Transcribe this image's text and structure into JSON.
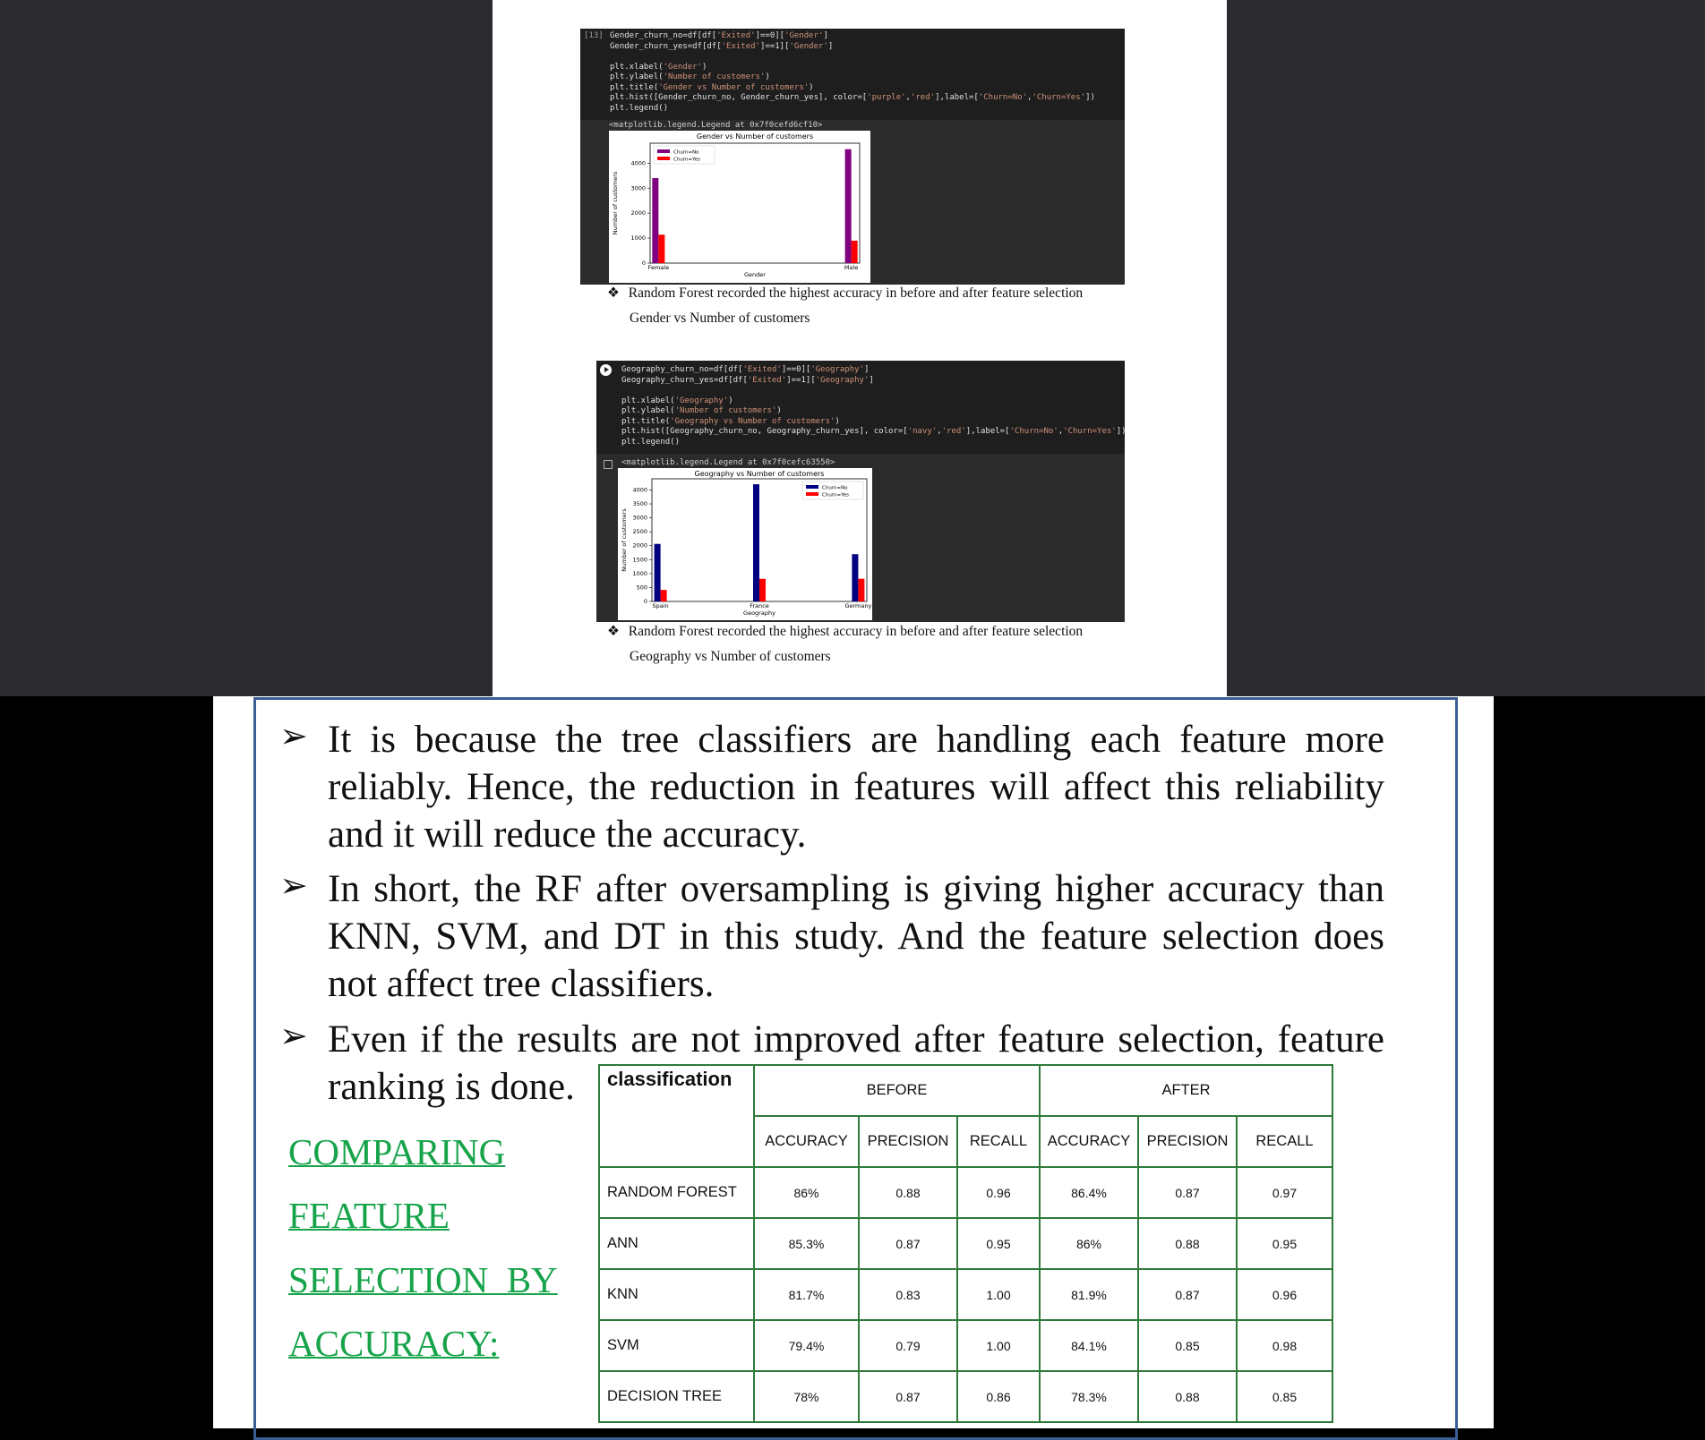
{
  "cell1": {
    "code": [
      {
        "segments": [
          {
            "t": "Gender_churn_no=df[df[",
            "c": "p"
          },
          {
            "t": "'Exited'",
            "c": "s"
          },
          {
            "t": "]==0][",
            "c": "p"
          },
          {
            "t": "'Gender'",
            "c": "s"
          },
          {
            "t": "]",
            "c": "p"
          }
        ]
      },
      {
        "segments": [
          {
            "t": "Gender_churn_yes=df[df[",
            "c": "p"
          },
          {
            "t": "'Exited'",
            "c": "s"
          },
          {
            "t": "]==1][",
            "c": "p"
          },
          {
            "t": "'Gender'",
            "c": "s"
          },
          {
            "t": "]",
            "c": "p"
          }
        ]
      },
      {
        "segments": [
          {
            "t": "",
            "c": "p"
          }
        ]
      },
      {
        "segments": [
          {
            "t": "plt.xlabel(",
            "c": "p"
          },
          {
            "t": "'Gender'",
            "c": "s"
          },
          {
            "t": ")",
            "c": "p"
          }
        ]
      },
      {
        "segments": [
          {
            "t": "plt.ylabel(",
            "c": "p"
          },
          {
            "t": "'Number of customers'",
            "c": "s"
          },
          {
            "t": ")",
            "c": "p"
          }
        ]
      },
      {
        "segments": [
          {
            "t": "plt.title(",
            "c": "p"
          },
          {
            "t": "'Gender vs Number of customers'",
            "c": "s"
          },
          {
            "t": ")",
            "c": "p"
          }
        ]
      },
      {
        "segments": [
          {
            "t": "plt.hist([Gender_churn_no, Gender_churn_yes], color=[",
            "c": "p"
          },
          {
            "t": "'purple'",
            "c": "s"
          },
          {
            "t": ",",
            "c": "p"
          },
          {
            "t": "'red'",
            "c": "s"
          },
          {
            "t": "],label=[",
            "c": "p"
          },
          {
            "t": "'Churn=No'",
            "c": "s"
          },
          {
            "t": ",",
            "c": "p"
          },
          {
            "t": "'Churn=Yes'",
            "c": "s"
          },
          {
            "t": "])",
            "c": "p"
          }
        ]
      },
      {
        "segments": [
          {
            "t": "plt.legend()",
            "c": "p"
          }
        ]
      }
    ],
    "cell_number": "[13]",
    "output_text": "<matplotlib.legend.Legend at 0x7f0cefd6cf10>"
  },
  "cell2": {
    "code": [
      {
        "segments": [
          {
            "t": "Geography_churn_no=df[df[",
            "c": "p"
          },
          {
            "t": "'Exited'",
            "c": "s"
          },
          {
            "t": "]==0][",
            "c": "p"
          },
          {
            "t": "'Geography'",
            "c": "s"
          },
          {
            "t": "]",
            "c": "p"
          }
        ]
      },
      {
        "segments": [
          {
            "t": "Geography_churn_yes=df[df[",
            "c": "p"
          },
          {
            "t": "'Exited'",
            "c": "s"
          },
          {
            "t": "]==1][",
            "c": "p"
          },
          {
            "t": "'Geography'",
            "c": "s"
          },
          {
            "t": "]",
            "c": "p"
          }
        ]
      },
      {
        "segments": [
          {
            "t": "",
            "c": "p"
          }
        ]
      },
      {
        "segments": [
          {
            "t": "plt.xlabel(",
            "c": "p"
          },
          {
            "t": "'Geography'",
            "c": "s"
          },
          {
            "t": ")",
            "c": "p"
          }
        ]
      },
      {
        "segments": [
          {
            "t": "plt.ylabel(",
            "c": "p"
          },
          {
            "t": "'Number of customers'",
            "c": "s"
          },
          {
            "t": ")",
            "c": "p"
          }
        ]
      },
      {
        "segments": [
          {
            "t": "plt.title(",
            "c": "p"
          },
          {
            "t": "'Geography vs Number of customers'",
            "c": "s"
          },
          {
            "t": ")",
            "c": "p"
          }
        ]
      },
      {
        "segments": [
          {
            "t": "plt.hist([Geography_churn_no, Geography_churn_yes], color=[",
            "c": "p"
          },
          {
            "t": "'navy'",
            "c": "s"
          },
          {
            "t": ",",
            "c": "p"
          },
          {
            "t": "'red'",
            "c": "s"
          },
          {
            "t": "],label=[",
            "c": "p"
          },
          {
            "t": "'Churn=No'",
            "c": "s"
          },
          {
            "t": ",",
            "c": "p"
          },
          {
            "t": "'Churn=Yes'",
            "c": "s"
          },
          {
            "t": "])",
            "c": "p"
          }
        ]
      },
      {
        "segments": [
          {
            "t": "plt.legend()",
            "c": "p"
          }
        ]
      }
    ],
    "output_text": "<matplotlib.legend.Legend at 0x7f0cefc63550>"
  },
  "chart_data": [
    {
      "type": "bar",
      "title": "Gender vs Number of customers",
      "xlabel": "Gender",
      "ylabel": "Number of customers",
      "categories": [
        "Female",
        "Male"
      ],
      "series": [
        {
          "name": "Churn=No",
          "color": "#800080",
          "values": [
            3404,
            4559
          ]
        },
        {
          "name": "Churn=Yes",
          "color": "#ff0000",
          "values": [
            1139,
            898
          ]
        }
      ],
      "yticks": [
        0,
        1000,
        2000,
        3000,
        4000
      ],
      "ylim": [
        0,
        4800
      ],
      "legend": "top-left"
    },
    {
      "type": "bar",
      "title": "Geography vs Number of customers",
      "xlabel": "Geography",
      "ylabel": "Number of customers",
      "categories": [
        "Spain",
        "France",
        "Germany"
      ],
      "series": [
        {
          "name": "Churn=No",
          "color": "#000080",
          "values": [
            2064,
            4204,
            1695
          ]
        },
        {
          "name": "Churn=Yes",
          "color": "#ff0000",
          "values": [
            413,
            810,
            814
          ]
        }
      ],
      "yticks": [
        0,
        500,
        1000,
        1500,
        2000,
        2500,
        3000,
        3500,
        4000
      ],
      "ylim": [
        0,
        4400
      ],
      "legend": "top-right"
    }
  ],
  "notes": {
    "bullet": "❖",
    "note1": "Random Forest recorded the highest accuracy in before and after feature selection",
    "caption1": "Gender vs Number of customers",
    "note2": "Random Forest recorded the highest accuracy in before and after feature selection",
    "caption2": "Geography vs Number of customers"
  },
  "points": {
    "arrow": "➢",
    "p1": "It is because the tree classifiers are handling each feature more reliably. Hence, the reduction in features will affect this reliability and it will reduce the accuracy.",
    "p2": "In short, the RF after oversampling is giving higher accuracy than KNN, SVM, and DT in this study. And the feature selection does not affect tree classifiers.",
    "p3": "Even if the results are not improved after feature selection, feature ranking is done."
  },
  "heading": {
    "l1": "COMPARING",
    "l2": "FEATURE",
    "l3": "SELECTION  BY",
    "l4": "ACCURACY:"
  },
  "table": {
    "corner": "classification",
    "before": "BEFORE",
    "after": "AFTER",
    "cols": [
      "ACCURACY",
      "PRECISION",
      "RECALL",
      "ACCURACY",
      "PRECISION",
      "RECALL"
    ],
    "rows": [
      {
        "name": "RANDOM FOREST",
        "vals": [
          "86%",
          "0.88",
          "0.96",
          "86.4%",
          "0.87",
          "0.97"
        ]
      },
      {
        "name": "ANN",
        "vals": [
          "85.3%",
          "0.87",
          "0.95",
          "86%",
          "0.88",
          "0.95"
        ]
      },
      {
        "name": "KNN",
        "vals": [
          "81.7%",
          "0.83",
          "1.00",
          "81.9%",
          "0.87",
          "0.96"
        ]
      },
      {
        "name": "SVM",
        "vals": [
          "79.4%",
          "0.79",
          "1.00",
          "84.1%",
          "0.85",
          "0.98"
        ]
      },
      {
        "name": "DECISION TREE",
        "vals": [
          "78%",
          "0.87",
          "0.86",
          "78.3%",
          "0.88",
          "0.85"
        ]
      }
    ]
  }
}
